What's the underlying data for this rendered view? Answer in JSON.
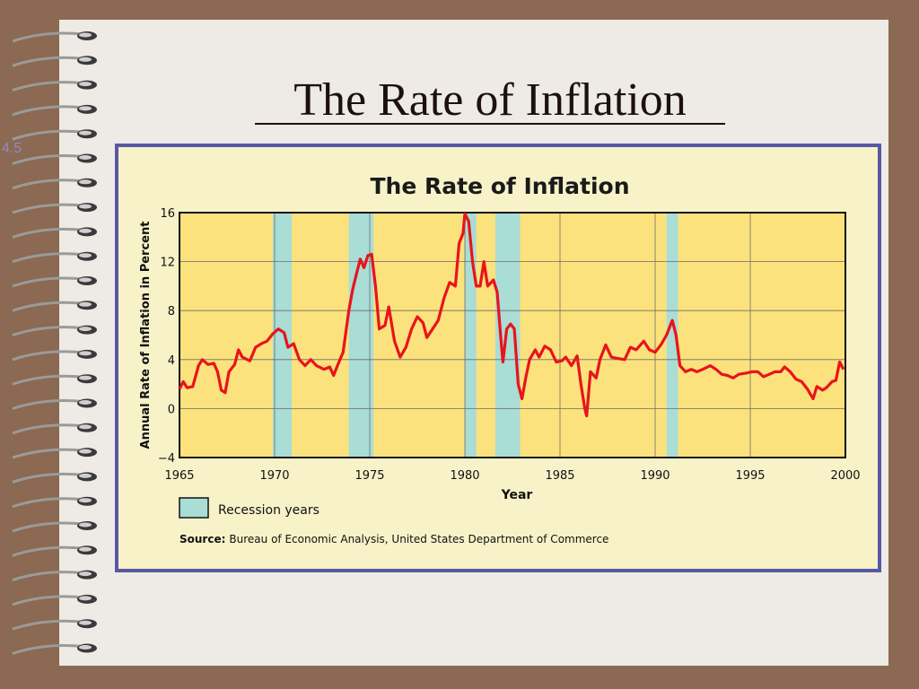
{
  "slide_title": "The Rate of Inflation",
  "slide_number": "4.5",
  "chart_data": {
    "type": "line",
    "title": "The Rate of Inflation",
    "y_label": "Annual Rate of Inflation in Percent",
    "x_label": "Year",
    "xlim": [
      1965,
      2000
    ],
    "xticks": [
      1965,
      1970,
      1975,
      1980,
      1985,
      1990,
      1995,
      2000
    ],
    "ylim": [
      -4,
      16
    ],
    "yticks": [
      {
        "value": -4,
        "label": "−4"
      },
      0,
      4,
      8,
      12,
      16
    ],
    "grid": true,
    "recessions": [
      [
        1969.9,
        1970.9
      ],
      [
        1973.9,
        1975.2
      ],
      [
        1980.0,
        1980.6
      ],
      [
        1981.6,
        1982.9
      ],
      [
        1990.6,
        1991.2
      ]
    ],
    "recession_color": "#a9ddd6",
    "recession_label": "Recession years",
    "source_label": "Source:",
    "source": "Bureau of Economic Analysis, United States Department of Commerce",
    "series": [
      {
        "color": "#e8141c",
        "x": [
          1965.0,
          1965.2,
          1965.4,
          1965.7,
          1966.0,
          1966.2,
          1966.5,
          1966.8,
          1967.0,
          1967.2,
          1967.4,
          1967.6,
          1967.9,
          1968.1,
          1968.3,
          1968.7,
          1969.0,
          1969.3,
          1969.6,
          1969.9,
          1970.2,
          1970.5,
          1970.7,
          1971.0,
          1971.3,
          1971.6,
          1971.9,
          1972.2,
          1972.6,
          1972.9,
          1973.1,
          1973.3,
          1973.6,
          1973.9,
          1974.1,
          1974.3,
          1974.5,
          1974.7,
          1974.9,
          1975.1,
          1975.3,
          1975.5,
          1975.8,
          1976.0,
          1976.3,
          1976.6,
          1976.9,
          1977.2,
          1977.5,
          1977.8,
          1978.0,
          1978.3,
          1978.6,
          1978.9,
          1979.2,
          1979.5,
          1979.7,
          1979.9,
          1980.0,
          1980.2,
          1980.4,
          1980.6,
          1980.8,
          1981.0,
          1981.2,
          1981.5,
          1981.7,
          1981.9,
          1982.0,
          1982.2,
          1982.4,
          1982.6,
          1982.8,
          1983.0,
          1983.2,
          1983.4,
          1983.7,
          1983.9,
          1984.2,
          1984.5,
          1984.8,
          1985.1,
          1985.3,
          1985.6,
          1985.9,
          1986.1,
          1986.3,
          1986.4,
          1986.6,
          1986.9,
          1987.1,
          1987.4,
          1987.7,
          1988.0,
          1988.4,
          1988.7,
          1989.0,
          1989.4,
          1989.7,
          1990.0,
          1990.3,
          1990.6,
          1990.9,
          1991.1,
          1991.3,
          1991.6,
          1991.9,
          1992.2,
          1992.5,
          1992.9,
          1993.2,
          1993.5,
          1993.8,
          1994.1,
          1994.4,
          1994.8,
          1995.1,
          1995.4,
          1995.7,
          1996.0,
          1996.3,
          1996.6,
          1996.8,
          1997.1,
          1997.4,
          1997.7,
          1998.0,
          1998.3,
          1998.5,
          1998.8,
          1999.0,
          1999.3,
          1999.5,
          1999.7,
          1999.9
        ],
        "values": [
          1.6,
          2.2,
          1.7,
          1.8,
          3.5,
          4.0,
          3.6,
          3.7,
          3.0,
          1.5,
          1.3,
          3.0,
          3.6,
          4.8,
          4.2,
          3.9,
          5.0,
          5.3,
          5.5,
          6.1,
          6.5,
          6.2,
          5.0,
          5.3,
          4.0,
          3.5,
          4.0,
          3.5,
          3.2,
          3.4,
          2.7,
          3.5,
          4.6,
          8.0,
          9.7,
          11.0,
          12.2,
          11.5,
          12.5,
          12.6,
          10.0,
          6.5,
          6.8,
          8.3,
          5.5,
          4.2,
          5.0,
          6.5,
          7.5,
          7.0,
          5.8,
          6.5,
          7.2,
          9.0,
          10.3,
          10.0,
          13.5,
          14.3,
          15.9,
          15.3,
          12.0,
          10.0,
          10.0,
          12.0,
          10.0,
          10.5,
          9.5,
          5.5,
          3.8,
          6.5,
          6.9,
          6.5,
          2.0,
          0.8,
          2.5,
          4.0,
          4.8,
          4.2,
          5.1,
          4.8,
          3.8,
          3.9,
          4.2,
          3.5,
          4.3,
          2.0,
          0.0,
          -0.6,
          3.0,
          2.5,
          4.0,
          5.2,
          4.2,
          4.1,
          4.0,
          5.0,
          4.8,
          5.5,
          4.8,
          4.6,
          5.2,
          6.0,
          7.2,
          6.0,
          3.5,
          3.0,
          3.2,
          3.0,
          3.2,
          3.5,
          3.2,
          2.8,
          2.7,
          2.5,
          2.8,
          2.9,
          3.0,
          3.0,
          2.6,
          2.8,
          3.0,
          3.0,
          3.4,
          3.0,
          2.4,
          2.2,
          1.6,
          0.8,
          1.8,
          1.5,
          1.7,
          2.2,
          2.3,
          3.8,
          3.2
        ]
      }
    ]
  }
}
